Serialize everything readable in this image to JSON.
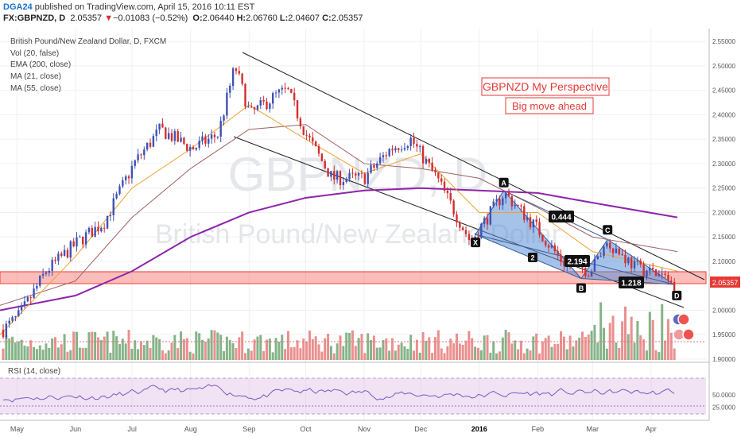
{
  "header": {
    "author": "DGA24",
    "published_text": "published on TradingView.com, April 15, 2016 10:11 EST",
    "symbol": "FX:GBPNZD, D",
    "last": "2.05357",
    "change": "−0.01083 (−0.52%)",
    "open_label": "O:",
    "open": "2.06440",
    "high_label": "H:",
    "high": "2.06760",
    "low_label": "L:",
    "low": "2.04607",
    "close_label": "C:",
    "close": "2.05357"
  },
  "legend": {
    "title": "British Pound/New Zealand Dollar, D, FXCM",
    "items": [
      "Vol (20, false)",
      "EMA (200, close)",
      "MA (21, close)",
      "MA (55, close)"
    ]
  },
  "watermark": {
    "symbol": "GBPNZD, D",
    "name": "British Pound/New Zealand Dollar"
  },
  "annotations": {
    "box1": "GBPNZD My Perspective",
    "box2": "Big move ahead",
    "points": [
      "X",
      "A",
      "B",
      "C",
      "D"
    ],
    "ratios": [
      "0.444",
      "2.194",
      "1.218"
    ],
    "wave_label": "2"
  },
  "rsi": {
    "label": "RSI (14, close)",
    "ticks": [
      "50.0000",
      "25.0000"
    ]
  },
  "colors": {
    "up": "#3f51b5",
    "down": "#d32f2f",
    "ema200": "#8e24aa",
    "ma21": "#f0a030",
    "ma55": "#a06060",
    "zone": "#f44336",
    "pattern": "#5b8fd6",
    "price_tag": "#e53935"
  },
  "chart_data": {
    "type": "line",
    "title": "British Pound/New Zealand Dollar, D, FXCM",
    "x_ticks": [
      "May",
      "Jun",
      "Jul",
      "Aug",
      "Sep",
      "Oct",
      "Nov",
      "Dec",
      "2016",
      "Feb",
      "Mar",
      "Apr"
    ],
    "y_ticks": [
      "2.55000",
      "2.50000",
      "2.45000",
      "2.40000",
      "2.35000",
      "2.30000",
      "2.25000",
      "2.20000",
      "2.15000",
      "2.10000",
      "2.05357",
      "2.00000",
      "1.95000",
      "1.90000"
    ],
    "ylim": [
      1.9,
      2.56
    ],
    "last_price": 2.05357,
    "support_zone": [
      2.05,
      2.07
    ],
    "series": [
      {
        "name": "Close",
        "x": [
          "2015-04-22",
          "2015-05-01",
          "2015-05-15",
          "2015-06-01",
          "2015-06-15",
          "2015-07-01",
          "2015-07-15",
          "2015-08-01",
          "2015-08-15",
          "2015-08-24",
          "2015-09-01",
          "2015-09-15",
          "2015-09-21",
          "2015-10-01",
          "2015-10-15",
          "2015-11-01",
          "2015-11-15",
          "2015-11-26",
          "2015-12-10",
          "2015-12-28",
          "2016-01-15",
          "2016-02-01",
          "2016-02-15",
          "2016-03-01",
          "2016-03-10",
          "2016-03-25",
          "2016-04-08",
          "2016-04-15"
        ],
        "values": [
          1.96,
          1.99,
          2.08,
          2.14,
          2.18,
          2.3,
          2.37,
          2.33,
          2.36,
          2.5,
          2.4,
          2.44,
          2.45,
          2.36,
          2.27,
          2.27,
          2.33,
          2.35,
          2.27,
          2.14,
          2.24,
          2.17,
          2.1,
          2.08,
          2.14,
          2.09,
          2.07,
          2.054
        ]
      },
      {
        "name": "EMA (200, close)",
        "x": [
          "2015-04-22",
          "2015-06-01",
          "2015-07-01",
          "2015-08-01",
          "2015-09-01",
          "2015-10-01",
          "2015-11-01",
          "2015-12-01",
          "2016-01-01",
          "2016-02-01",
          "2016-03-01",
          "2016-04-15"
        ],
        "values": [
          2.0,
          2.03,
          2.08,
          2.15,
          2.2,
          2.23,
          2.245,
          2.25,
          2.245,
          2.24,
          2.22,
          2.19
        ]
      },
      {
        "name": "MA (21, close)",
        "x": [
          "2015-04-22",
          "2015-06-01",
          "2015-07-01",
          "2015-08-01",
          "2015-09-01",
          "2015-10-01",
          "2015-11-01",
          "2015-12-01",
          "2016-01-01",
          "2016-02-01",
          "2016-03-01",
          "2016-04-15"
        ],
        "values": [
          1.95,
          2.11,
          2.25,
          2.33,
          2.42,
          2.35,
          2.28,
          2.32,
          2.2,
          2.2,
          2.12,
          2.08
        ]
      },
      {
        "name": "MA (55, close)",
        "x": [
          "2015-04-22",
          "2015-06-01",
          "2015-07-01",
          "2015-08-01",
          "2015-09-01",
          "2015-10-01",
          "2015-11-01",
          "2015-12-01",
          "2016-01-01",
          "2016-02-01",
          "2016-03-01",
          "2016-04-15"
        ],
        "values": [
          2.01,
          2.06,
          2.19,
          2.29,
          2.37,
          2.38,
          2.3,
          2.29,
          2.27,
          2.21,
          2.15,
          2.12
        ]
      }
    ],
    "harmonic_pattern": {
      "points": [
        "X",
        "A",
        "B",
        "C",
        "D"
      ],
      "values": [
        2.155,
        2.245,
        2.065,
        2.145,
        2.053
      ],
      "ratios": [
        "0.444",
        "2.194",
        "1.218"
      ]
    }
  }
}
